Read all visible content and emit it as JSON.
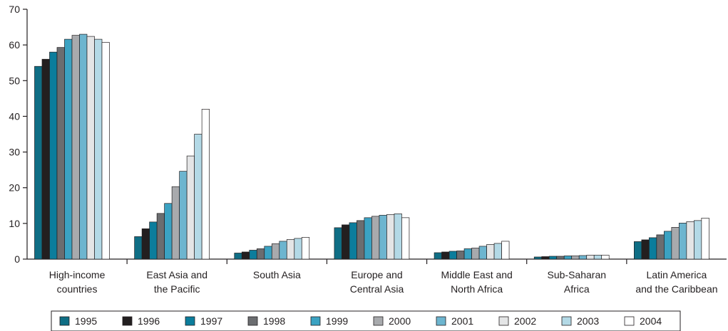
{
  "chart_data": {
    "type": "bar",
    "title": "",
    "xlabel": "",
    "ylabel": "",
    "ylim": [
      0,
      70
    ],
    "yticks": [
      0,
      10,
      20,
      30,
      40,
      50,
      60,
      70
    ],
    "grid": false,
    "legend_position": "bottom",
    "categories": [
      [
        "High-income",
        "countries"
      ],
      [
        "East Asia and",
        "the Pacific"
      ],
      [
        "South Asia"
      ],
      [
        "Europe and",
        "Central Asia"
      ],
      [
        "Middle East and",
        "North Africa"
      ],
      [
        "Sub-Saharan",
        "Africa"
      ],
      [
        "Latin America",
        "and the Caribbean"
      ]
    ],
    "series": [
      {
        "name": "1995",
        "color": "#0f6e85",
        "values": [
          54.0,
          6.3,
          1.7,
          8.8,
          1.8,
          0.6,
          4.9
        ]
      },
      {
        "name": "1996",
        "color": "#231f20",
        "values": [
          56.0,
          8.5,
          2.0,
          9.6,
          2.0,
          0.7,
          5.4
        ]
      },
      {
        "name": "1997",
        "color": "#0b7d9c",
        "values": [
          58.0,
          10.4,
          2.5,
          10.2,
          2.2,
          0.8,
          6.0
        ]
      },
      {
        "name": "1998",
        "color": "#6b6d70",
        "values": [
          59.3,
          12.8,
          2.9,
          10.8,
          2.3,
          0.8,
          6.8
        ]
      },
      {
        "name": "1999",
        "color": "#3ba2c2",
        "values": [
          61.6,
          15.6,
          3.6,
          11.6,
          2.9,
          0.9,
          7.8
        ]
      },
      {
        "name": "2000",
        "color": "#a8aaad",
        "values": [
          62.7,
          20.3,
          4.3,
          12.0,
          3.1,
          0.9,
          8.9
        ]
      },
      {
        "name": "2001",
        "color": "#6db5cf",
        "values": [
          63.0,
          24.6,
          5.0,
          12.3,
          3.6,
          1.0,
          10.1
        ]
      },
      {
        "name": "2002",
        "color": "#e4e5e6",
        "values": [
          62.4,
          28.9,
          5.5,
          12.5,
          4.1,
          1.1,
          10.5
        ]
      },
      {
        "name": "2003",
        "color": "#b3d9e6",
        "values": [
          61.6,
          35.0,
          5.8,
          12.7,
          4.4,
          1.1,
          10.8
        ]
      },
      {
        "name": "2004",
        "color": "#ffffff",
        "values": [
          60.7,
          42.0,
          6.1,
          11.6,
          5.0,
          1.1,
          11.5
        ]
      }
    ]
  }
}
